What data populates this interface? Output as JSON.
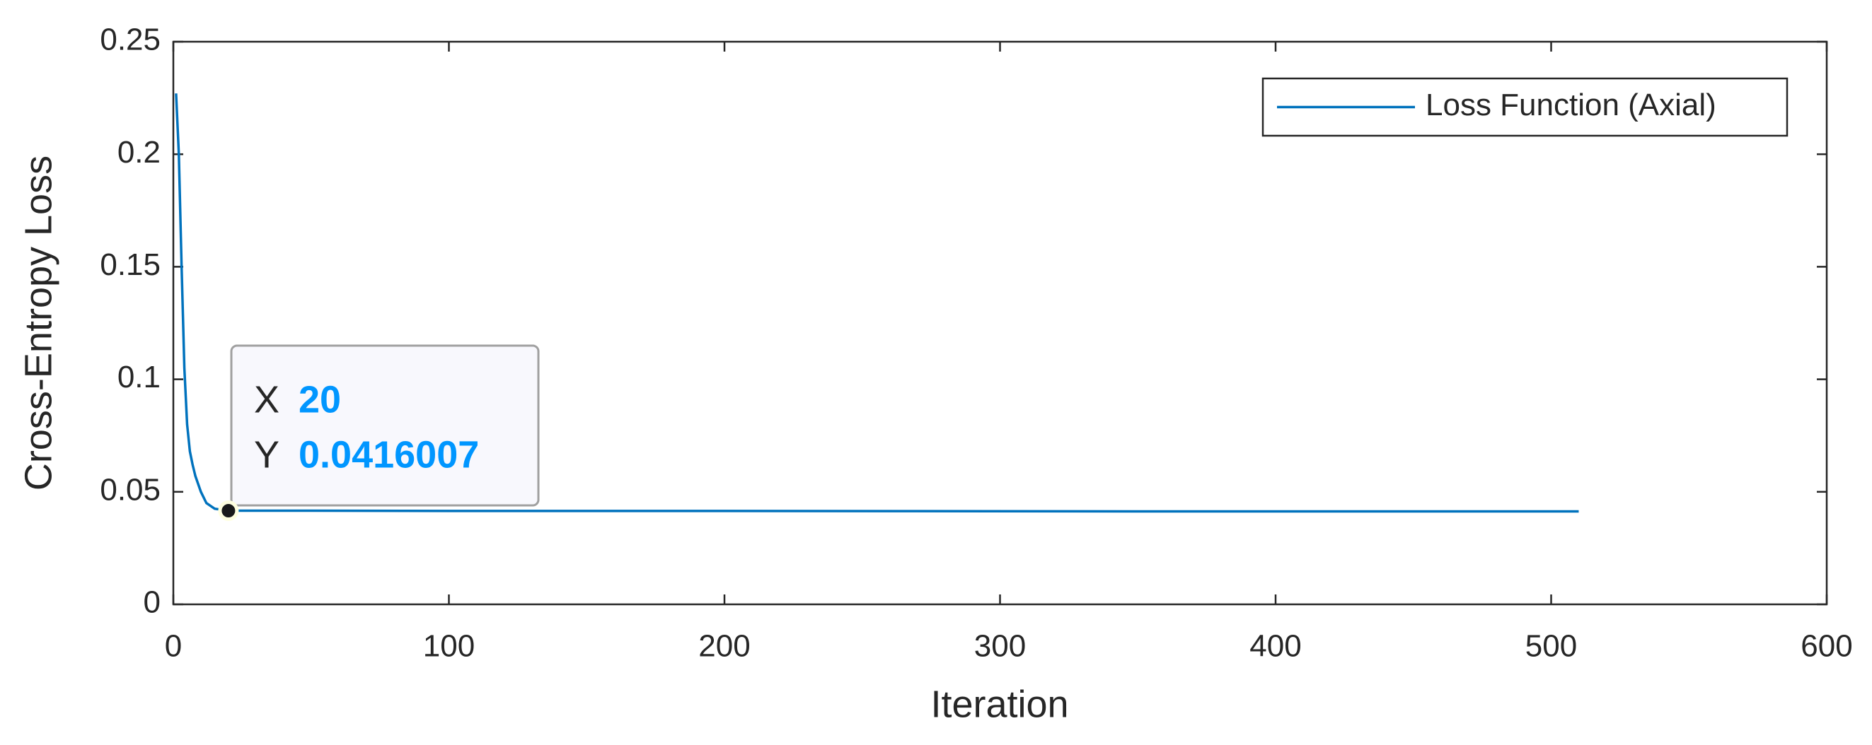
{
  "chart_data": {
    "type": "line",
    "xlabel": "Iteration",
    "ylabel": "Cross-Entropy Loss",
    "xlim": [
      0,
      600
    ],
    "xticks": [
      0,
      100,
      200,
      300,
      400,
      500,
      600
    ],
    "ylim": [
      0,
      0.25
    ],
    "yticks": [
      0,
      0.05,
      0.1,
      0.15,
      0.2,
      0.25
    ],
    "legend": "top-right",
    "box": true,
    "series": [
      {
        "name": "Loss Function (Axial)",
        "color": "#0072bd",
        "x": [
          1,
          2,
          3,
          4,
          5,
          6,
          7,
          8,
          10,
          12,
          15,
          20,
          50,
          100,
          200,
          270,
          350,
          450,
          510
        ],
        "values": [
          0.227,
          0.2,
          0.15,
          0.105,
          0.08,
          0.068,
          0.062,
          0.057,
          0.05,
          0.045,
          0.0425,
          0.0416007,
          0.0416,
          0.0415,
          0.0415,
          0.0414,
          0.0413,
          0.0413,
          0.0413
        ]
      }
    ],
    "datatip": {
      "x_label": "X",
      "x": 20,
      "y_label": "Y",
      "y": 0.0416007
    }
  }
}
